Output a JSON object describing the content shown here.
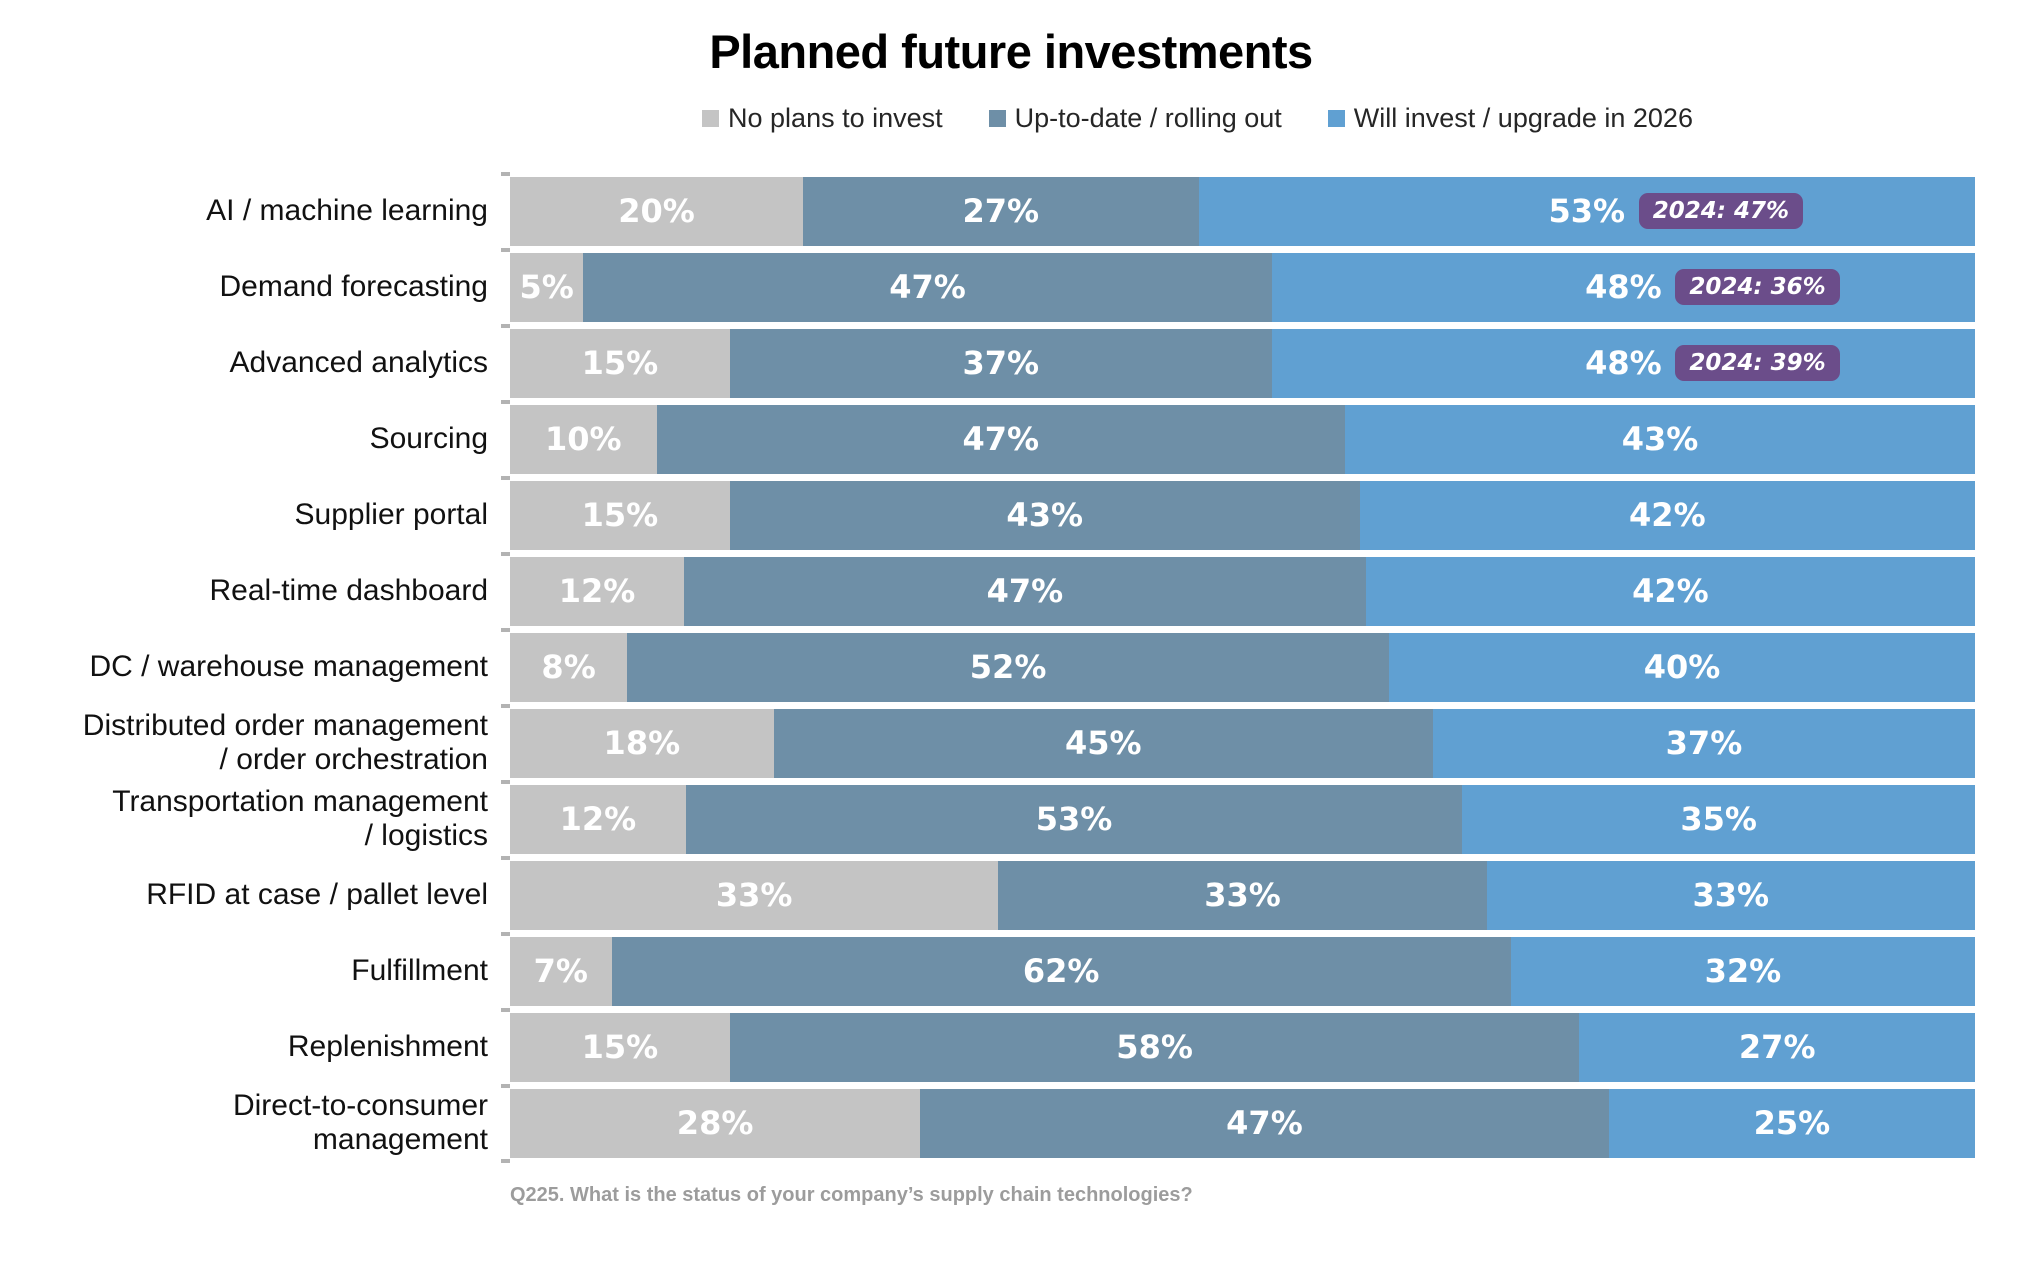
{
  "title": "Planned future investments",
  "legend": [
    {
      "label": "No plans to invest",
      "color": "#c4c4c4"
    },
    {
      "label": "Up-to-date / rolling out",
      "color": "#6e8fa7"
    },
    {
      "label": "Will invest / upgrade in 2026",
      "color": "#60a0d2"
    }
  ],
  "footnote": "Q225. What is the status of your company’s supply chain technologies?",
  "badge_color": "#6b4d8a",
  "chart_data": {
    "type": "bar",
    "stacked": true,
    "orientation": "horizontal",
    "title": "Planned future investments",
    "xlabel": "",
    "ylabel": "",
    "xlim": [
      0,
      100
    ],
    "value_suffix": "%",
    "grid": false,
    "legend_position": "top",
    "categories": [
      "AI / machine learning",
      "Demand forecasting",
      "Advanced analytics",
      "Sourcing",
      "Supplier portal",
      "Real-time dashboard",
      "DC / warehouse management",
      "Distributed order management\n/ order orchestration",
      "Transportation management\n/ logistics",
      "RFID at case / pallet level",
      "Fulfillment",
      "Replenishment",
      "Direct-to-consumer\nmanagement"
    ],
    "series": [
      {
        "name": "No plans to invest",
        "color": "#c4c4c4",
        "values": [
          20,
          5,
          15,
          10,
          15,
          12,
          8,
          18,
          12,
          33,
          7,
          15,
          28
        ]
      },
      {
        "name": "Up-to-date / rolling out",
        "color": "#6e8fa7",
        "values": [
          27,
          47,
          37,
          47,
          43,
          47,
          52,
          45,
          53,
          33,
          62,
          58,
          47
        ]
      },
      {
        "name": "Will invest / upgrade in 2026",
        "color": "#60a0d2",
        "values": [
          53,
          48,
          48,
          43,
          42,
          42,
          40,
          37,
          35,
          33,
          32,
          27,
          25
        ]
      }
    ],
    "annotations": [
      {
        "category_index": 0,
        "text": "2024: 47%"
      },
      {
        "category_index": 1,
        "text": "2024: 36%"
      },
      {
        "category_index": 2,
        "text": "2024: 39%"
      }
    ]
  }
}
